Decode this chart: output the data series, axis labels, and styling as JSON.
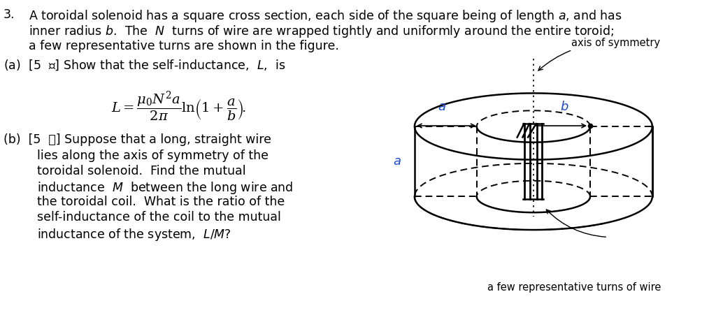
{
  "bg_color": "#ffffff",
  "text_color": "#000000",
  "fig_width": 10.24,
  "fig_height": 4.61,
  "problem_number": "3.",
  "line1": "A toroidal solenoid has a square cross section, each side of the square being of length $a$, and has",
  "line2": "inner radius $b$.  The  $N$  turns of wire are wrapped tightly and uniformly around the entire toroid;",
  "line3": "a few representative turns are shown in the figure.",
  "part_a_label": "(a)  [5  점] Show that the self-inductance,  $L$,  is",
  "formula": "$L = \\dfrac{\\mu_0 N^2 a}{2\\pi} \\ln\\!\\left(1 + \\dfrac{a}{b}\\right)\\!.$",
  "part_b_label": "(b)  [5  점] Suppose that a long, straight wire",
  "b_line2": "lies along the axis of symmetry of the",
  "b_line3": "toroidal solenoid.  Find the mutual",
  "b_line4": "inductance  $M$  between the long wire and",
  "b_line5": "the toroidal coil.  What is the ratio of the",
  "b_line6": "self-inductance of the coil to the mutual",
  "b_line7": "inductance of the system,  $L/M$?",
  "caption": "a few representative turns of wire",
  "axis_label": "axis of symmetry",
  "label_a_color": "#1E4BD2",
  "label_b_color": "#1E4BD2"
}
